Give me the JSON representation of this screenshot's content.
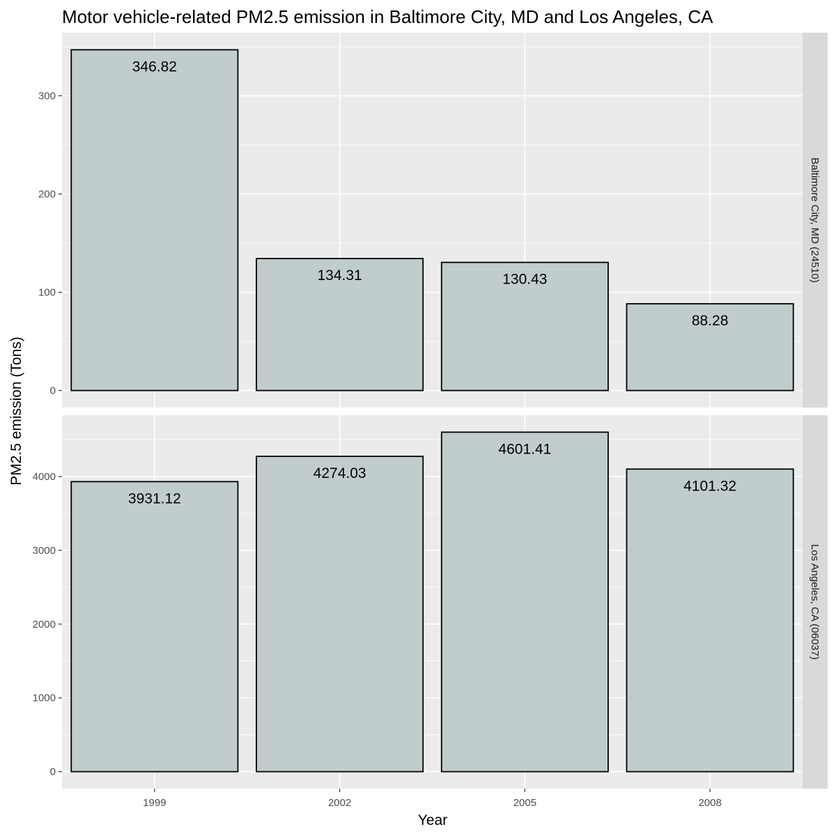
{
  "chart_data": {
    "type": "bar",
    "title": "Motor vehicle-related PM2.5 emission in Baltimore City, MD and Los Angeles, CA",
    "xlabel": "Year",
    "ylabel": "PM2.5 emission (Tons)",
    "categories": [
      "1999",
      "2002",
      "2005",
      "2008"
    ],
    "grid": true,
    "legend": "none",
    "colors": {
      "panel_bg": "#ebebeb",
      "strip_bg": "#d9d9d9",
      "bar_fill": "#c1cdcd",
      "bar_stroke": "#000000",
      "grid": "#ffffff"
    },
    "panels": [
      {
        "strip_label": "Baltimore City, MD (24510)",
        "values": [
          346.82,
          134.31,
          130.43,
          88.28
        ],
        "value_labels": [
          "346.82",
          "134.31",
          "130.43",
          "88.28"
        ],
        "ylim": [
          -17.34,
          364.16
        ],
        "yticks": [
          0,
          100,
          200,
          300
        ],
        "ytick_labels": [
          "0",
          "100",
          "200",
          "300"
        ]
      },
      {
        "strip_label": "Los Angeles, CA (06037)",
        "values": [
          3931.12,
          4274.03,
          4601.41,
          4101.32
        ],
        "value_labels": [
          "3931.12",
          "4274.03",
          "4601.41",
          "4101.32"
        ],
        "ylim": [
          -230.07,
          4831.48
        ],
        "yticks": [
          0,
          1000,
          2000,
          3000,
          4000
        ],
        "ytick_labels": [
          "0",
          "1000",
          "2000",
          "3000",
          "4000"
        ]
      }
    ]
  }
}
